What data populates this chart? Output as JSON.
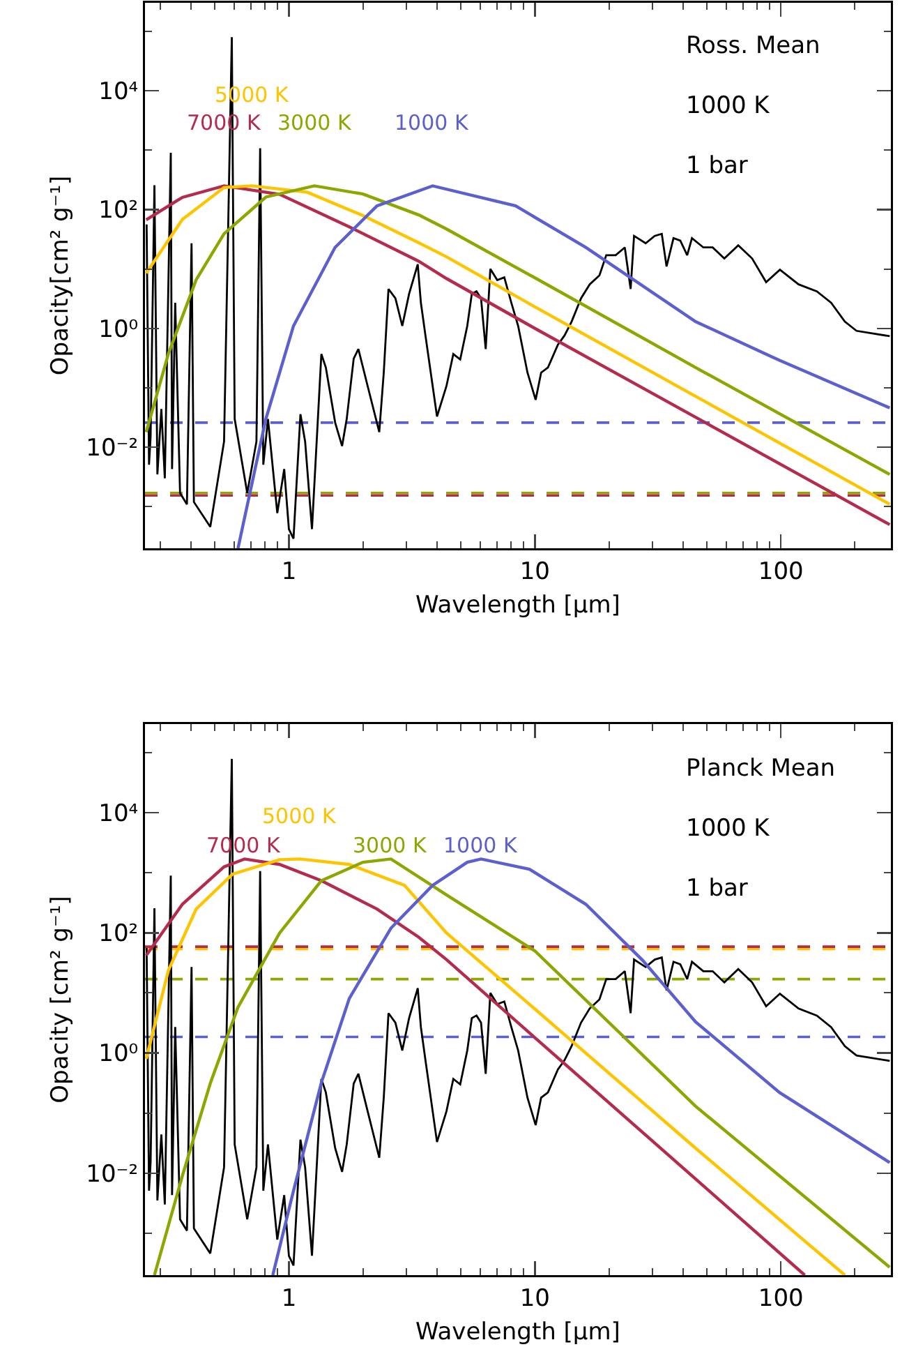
{
  "chart_data": [
    {
      "type": "line",
      "xlabel": "Wavelength [μm]",
      "ylabel": "Opacity[cm² g⁻¹]",
      "log": "xy",
      "grid": false,
      "xlim": [
        0.26,
        280
      ],
      "ylim": [
        0.0002,
        300000
      ],
      "xticks": [
        {
          "value": 0.3,
          "label": null
        },
        {
          "value": 0.4,
          "label": null
        },
        {
          "value": 0.5,
          "label": null
        },
        {
          "value": 0.6,
          "label": null
        },
        {
          "value": 0.7,
          "label": null
        },
        {
          "value": 0.8,
          "label": null
        },
        {
          "value": 0.9,
          "label": null
        },
        1,
        {
          "value": 2,
          "label": null
        },
        {
          "value": 3,
          "label": null
        },
        {
          "value": 4,
          "label": null
        },
        {
          "value": 5,
          "label": null
        },
        {
          "value": 6,
          "label": null
        },
        {
          "value": 7,
          "label": null
        },
        {
          "value": 8,
          "label": null
        },
        {
          "value": 9,
          "label": null
        },
        10,
        {
          "value": 20,
          "label": null
        },
        {
          "value": 30,
          "label": null
        },
        {
          "value": 40,
          "label": null
        },
        {
          "value": 50,
          "label": null
        },
        {
          "value": 60,
          "label": null
        },
        {
          "value": 70,
          "label": null
        },
        {
          "value": 80,
          "label": null
        },
        {
          "value": 90,
          "label": null
        },
        100,
        {
          "value": 200,
          "label": null
        }
      ],
      "yticks": [
        {
          "value": 0.001,
          "label": null
        },
        {
          "value": 0.01,
          "label": "10⁻²"
        },
        {
          "value": 0.1,
          "label": null
        },
        {
          "value": 1,
          "label": "10⁰"
        },
        {
          "value": 10,
          "label": null
        },
        {
          "value": 100,
          "label": "10²"
        },
        {
          "value": 1000,
          "label": null
        },
        {
          "value": 10000,
          "label": "10⁴"
        },
        {
          "value": 100000,
          "label": null
        }
      ],
      "annotations": [
        "Ross. Mean",
        "1000 K",
        "1 bar"
      ],
      "series": [
        {
          "color": "#000000",
          "x": [
            0.264,
            0.27,
            0.274,
            0.284,
            0.292,
            0.303,
            0.313,
            0.331,
            0.335,
            0.345,
            0.361,
            0.385,
            0.402,
            0.411,
            0.479,
            0.545,
            0.586,
            0.602,
            0.677,
            0.738,
            0.764,
            0.787,
            0.822,
            0.897,
            0.957,
            1.0,
            1.044,
            1.114,
            1.164,
            1.241,
            1.355,
            1.413,
            1.542,
            1.645,
            1.718,
            1.834,
            1.916,
            2.09,
            2.33,
            2.43,
            2.54,
            2.71,
            2.89,
            3.08,
            3.34,
            3.44,
            3.59,
            4.0,
            4.37,
            4.66,
            4.97,
            5.31,
            5.54,
            5.79,
            6.04,
            6.31,
            6.59,
            7.03,
            7.51,
            8.02,
            8.55,
            9.33,
            10.07,
            10.6,
            11.3,
            12.4,
            13.2,
            14.1,
            15.4,
            16.7,
            18.3,
            19.5,
            21.3,
            23.2,
            24.5,
            25.3,
            28.2,
            30.7,
            32.8,
            34.3,
            36.6,
            39.0,
            41.6,
            43.5,
            48.4,
            52.8,
            58.9,
            67.1,
            76.4,
            87.1,
            99.1,
            118,
            140,
            160,
            182,
            203,
            277
          ],
          "values": [
            56,
            0.0051,
            0.015,
            257,
            0.0035,
            0.044,
            0.003,
            900,
            0.0043,
            2.7,
            0.0017,
            0.0011,
            27,
            0.0012,
            0.00046,
            0.0125,
            79000,
            0.03,
            0.0017,
            0.0125,
            1070,
            0.0051,
            0.03,
            0.00078,
            0.0043,
            0.00042,
            0.00029,
            0.036,
            0.0125,
            0.00042,
            0.37,
            0.22,
            0.026,
            0.0105,
            0.03,
            0.31,
            0.45,
            0.107,
            0.018,
            0.18,
            4.6,
            3.2,
            1.1,
            3.8,
            12,
            2.7,
            0.76,
            0.033,
            0.107,
            0.37,
            0.3,
            1.1,
            3.8,
            4.2,
            3.2,
            0.45,
            10,
            6.5,
            7.2,
            2.7,
            1.1,
            0.18,
            0.063,
            0.18,
            0.22,
            0.53,
            0.76,
            1.3,
            3.2,
            5.5,
            7.8,
            17,
            17,
            23,
            4.6,
            36,
            27,
            36,
            39,
            11,
            33,
            30,
            17,
            33,
            23,
            23,
            15,
            25,
            15,
            6,
            9.7,
            5.5,
            4.2,
            2.7,
            1.3,
            0.91,
            0.74
          ]
        },
        {
          "name": "7000 K",
          "color": "#b52b4d",
          "x": [
            0.263,
            0.369,
            0.545,
            0.917,
            1.76,
            3.37,
            4.37,
            10,
            45,
            277
          ],
          "values": [
            67,
            160,
            250,
            180,
            51,
            13.5,
            6.9,
            1.0,
            0.032,
            0.0005
          ]
        },
        {
          "name": "5000 K",
          "color": "#ffc400",
          "x": [
            0.263,
            0.369,
            0.545,
            0.707,
            1.19,
            2.0,
            3.37,
            4.37,
            10,
            45,
            277
          ],
          "values": [
            8.5,
            68,
            234,
            250,
            195,
            79,
            27.5,
            16,
            2.3,
            0.072,
            0.0011
          ]
        },
        {
          "name": "3000 K",
          "color": "#8da600",
          "x": [
            0.263,
            0.324,
            0.42,
            0.545,
            0.806,
            1.27,
            2.0,
            3.37,
            4.37,
            10,
            45,
            277
          ],
          "values": [
            0.018,
            0.38,
            6.6,
            39,
            162,
            250,
            182,
            81,
            47,
            7.1,
            0.22,
            0.0035
          ]
        },
        {
          "name": "1000 K",
          "color": "#5b5fcf",
          "x": [
            0.621,
            0.806,
            1.044,
            1.54,
            2.28,
            3.84,
            8.35,
            16.1,
            45,
            98.7,
            277
          ],
          "values": [
            0.0002,
            0.03,
            1.1,
            23,
            115,
            250,
            115,
            23,
            1.3,
            0.29,
            0.046
          ]
        }
      ],
      "ref_lines": [
        {
          "axis": "y",
          "value": 0.026,
          "color": "#5b5fcf",
          "line_style": "dashed"
        },
        {
          "axis": "y",
          "value": 0.00155,
          "color": "#b52b4d",
          "line_style": "dashed"
        },
        {
          "axis": "y",
          "value": 0.0017,
          "color": "#8da600",
          "line_style": "dashed"
        }
      ]
    },
    {
      "type": "line",
      "xlabel": "Wavelength [μm]",
      "ylabel": "Opacity [cm² g⁻¹]",
      "log": "xy",
      "grid": false,
      "xlim": [
        0.26,
        280
      ],
      "ylim": [
        0.0002,
        300000
      ],
      "xticks": [
        {
          "value": 0.3,
          "label": null
        },
        {
          "value": 0.4,
          "label": null
        },
        {
          "value": 0.5,
          "label": null
        },
        {
          "value": 0.6,
          "label": null
        },
        {
          "value": 0.7,
          "label": null
        },
        {
          "value": 0.8,
          "label": null
        },
        {
          "value": 0.9,
          "label": null
        },
        1,
        {
          "value": 2,
          "label": null
        },
        {
          "value": 3,
          "label": null
        },
        {
          "value": 4,
          "label": null
        },
        {
          "value": 5,
          "label": null
        },
        {
          "value": 6,
          "label": null
        },
        {
          "value": 7,
          "label": null
        },
        {
          "value": 8,
          "label": null
        },
        {
          "value": 9,
          "label": null
        },
        10,
        {
          "value": 20,
          "label": null
        },
        {
          "value": 30,
          "label": null
        },
        {
          "value": 40,
          "label": null
        },
        {
          "value": 50,
          "label": null
        },
        {
          "value": 60,
          "label": null
        },
        {
          "value": 70,
          "label": null
        },
        {
          "value": 80,
          "label": null
        },
        {
          "value": 90,
          "label": null
        },
        100,
        {
          "value": 200,
          "label": null
        }
      ],
      "yticks": [
        {
          "value": 0.001,
          "label": null
        },
        {
          "value": 0.01,
          "label": "10⁻²"
        },
        {
          "value": 0.1,
          "label": null
        },
        {
          "value": 1,
          "label": "10⁰"
        },
        {
          "value": 10,
          "label": null
        },
        {
          "value": 100,
          "label": "10²"
        },
        {
          "value": 1000,
          "label": null
        },
        {
          "value": 10000,
          "label": "10⁴"
        },
        {
          "value": 100000,
          "label": null
        }
      ],
      "annotations": [
        "Planck Mean",
        "1000 K",
        "1 bar"
      ],
      "series": [
        {
          "color": "#000000",
          "x": [
            0.264,
            0.27,
            0.274,
            0.284,
            0.292,
            0.303,
            0.313,
            0.331,
            0.335,
            0.345,
            0.361,
            0.385,
            0.402,
            0.411,
            0.479,
            0.545,
            0.586,
            0.602,
            0.677,
            0.738,
            0.764,
            0.787,
            0.822,
            0.897,
            0.957,
            1.0,
            1.044,
            1.114,
            1.164,
            1.241,
            1.355,
            1.413,
            1.542,
            1.645,
            1.718,
            1.834,
            1.916,
            2.09,
            2.33,
            2.43,
            2.54,
            2.71,
            2.89,
            3.08,
            3.34,
            3.44,
            3.59,
            4.0,
            4.37,
            4.66,
            4.97,
            5.31,
            5.54,
            5.79,
            6.04,
            6.31,
            6.59,
            7.03,
            7.51,
            8.02,
            8.55,
            9.33,
            10.07,
            10.6,
            11.3,
            12.4,
            13.2,
            14.1,
            15.4,
            16.7,
            18.3,
            19.5,
            21.3,
            23.2,
            24.5,
            25.3,
            28.2,
            30.7,
            32.8,
            34.3,
            36.6,
            39.0,
            41.6,
            43.5,
            48.4,
            52.8,
            58.9,
            67.1,
            76.4,
            87.1,
            99.1,
            118,
            140,
            160,
            182,
            203,
            277
          ],
          "values": [
            56,
            0.0051,
            0.015,
            257,
            0.0035,
            0.044,
            0.003,
            900,
            0.0043,
            2.7,
            0.0017,
            0.0011,
            27,
            0.0012,
            0.00046,
            0.0125,
            79000,
            0.03,
            0.0017,
            0.0125,
            1070,
            0.0051,
            0.03,
            0.00078,
            0.0043,
            0.00042,
            0.00029,
            0.036,
            0.0125,
            0.00042,
            0.37,
            0.22,
            0.026,
            0.0105,
            0.03,
            0.31,
            0.45,
            0.107,
            0.018,
            0.18,
            4.6,
            3.2,
            1.1,
            3.8,
            12,
            2.7,
            0.76,
            0.033,
            0.107,
            0.37,
            0.3,
            1.1,
            3.8,
            4.2,
            3.2,
            0.45,
            10,
            6.5,
            7.2,
            2.7,
            1.1,
            0.18,
            0.063,
            0.18,
            0.22,
            0.53,
            0.76,
            1.3,
            3.2,
            5.5,
            7.8,
            17,
            17,
            23,
            4.6,
            36,
            27,
            36,
            39,
            11,
            33,
            30,
            17,
            33,
            23,
            23,
            15,
            25,
            15,
            6,
            9.7,
            5.5,
            4.2,
            2.7,
            1.3,
            0.91,
            0.74
          ]
        },
        {
          "name": "7000 K",
          "color": "#b52b4d",
          "x": [
            0.263,
            0.369,
            0.545,
            0.66,
            0.917,
            1.355,
            2.28,
            3.37,
            4.37,
            10,
            45,
            125
          ],
          "values": [
            42,
            300,
            1260,
            1700,
            1380,
            740,
            250,
            85,
            36,
            1.8,
            0.008,
            0.0002
          ]
        },
        {
          "name": "5000 K",
          "color": "#ffc400",
          "x": [
            0.263,
            0.324,
            0.42,
            0.59,
            0.917,
            1.11,
            1.76,
            2.95,
            4.37,
            10,
            45,
            182
          ],
          "values": [
            0.8,
            24,
            250,
            950,
            1660,
            1700,
            1380,
            620,
            100,
            5.4,
            0.026,
            0.0002
          ]
        },
        {
          "name": "3000 K",
          "color": "#8da600",
          "x": [
            0.284,
            0.369,
            0.48,
            0.621,
            0.917,
            1.355,
            2.0,
            2.6,
            4.37,
            10,
            45,
            277
          ],
          "values": [
            0.0002,
            0.009,
            0.32,
            5.8,
            100,
            740,
            1500,
            1700,
            430,
            50,
            0.13,
            0.00027
          ]
        },
        {
          "name": "1000 K",
          "color": "#5b5fcf",
          "x": [
            0.86,
            1.044,
            1.355,
            1.76,
            2.6,
            3.84,
            5.31,
            6.04,
            9.5,
            16.1,
            27.4,
            45,
            98.7,
            277
          ],
          "values": [
            0.0002,
            0.0051,
            0.32,
            8.1,
            120,
            620,
            1500,
            1700,
            1150,
            300,
            35,
            3.3,
            0.22,
            0.015
          ]
        }
      ],
      "ref_lines": [
        {
          "axis": "y",
          "value": 54,
          "color": "#ffc400",
          "line_style": "dashed"
        },
        {
          "axis": "y",
          "value": 59,
          "color": "#b52b4d",
          "line_style": "dashed"
        },
        {
          "axis": "y",
          "value": 17,
          "color": "#8da600",
          "line_style": "dashed"
        },
        {
          "axis": "y",
          "value": 1.85,
          "color": "#5b5fcf",
          "line_style": "dashed"
        }
      ]
    }
  ]
}
